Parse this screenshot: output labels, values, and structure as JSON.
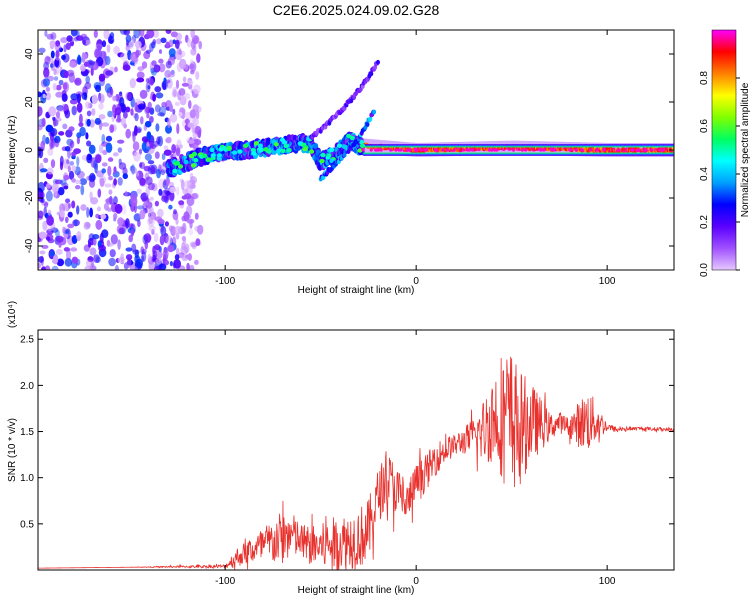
{
  "title": "C2E6.2025.024.09.02.G28",
  "colors": {
    "snr_line": "#e8302c",
    "frame": "#000000",
    "colorbar": [
      "#e6c8ff",
      "#a050ff",
      "#5a00ff",
      "#0000ff",
      "#00a0ff",
      "#00ffff",
      "#00ff60",
      "#80ff00",
      "#ffff00",
      "#ff8000",
      "#ff0000",
      "#ff00ff"
    ]
  },
  "chart_data": [
    {
      "type": "heatmap",
      "xlabel": "Height of straight line (km)",
      "ylabel": "Frequency (Hz)",
      "xlim": [
        -198,
        135
      ],
      "ylim": [
        -50,
        50
      ],
      "xticks": [
        -100,
        0,
        100
      ],
      "xtick_labels": [
        "-100",
        "0",
        "100"
      ],
      "yticks": [
        -40,
        -20,
        0,
        20,
        40
      ],
      "ytick_labels": [
        "-40",
        "-20",
        "0",
        "20",
        "40"
      ],
      "colorbar": {
        "label": "Normalized spectral amplitude",
        "range": [
          0,
          1
        ],
        "ticks": [
          0.0,
          0.2,
          0.4,
          0.6,
          0.8
        ],
        "tick_labels": [
          "0.0",
          "0.2",
          "0.4",
          "0.6",
          "0.8"
        ]
      },
      "features": {
        "noise_region_x": [
          -198,
          -125
        ],
        "main_band": [
          [
            -130,
            -8
          ],
          [
            -110,
            -2
          ],
          [
            -90,
            0
          ],
          [
            -70,
            2
          ],
          [
            -60,
            3
          ],
          [
            -55,
            2
          ],
          [
            -50,
            -5
          ],
          [
            -40,
            0
          ],
          [
            -35,
            4
          ],
          [
            -30,
            2
          ],
          [
            0,
            0
          ],
          [
            50,
            1
          ],
          [
            100,
            0
          ],
          [
            135,
            0
          ]
        ],
        "upper_branch": [
          [
            -55,
            5
          ],
          [
            -45,
            12
          ],
          [
            -35,
            20
          ],
          [
            -25,
            30
          ],
          [
            -20,
            37
          ]
        ],
        "lower_branch": [
          [
            -50,
            -12
          ],
          [
            -40,
            -4
          ],
          [
            -30,
            5
          ],
          [
            -22,
            16
          ]
        ],
        "isolated_spot": [
          -123,
          -22
        ]
      }
    },
    {
      "type": "line",
      "xlabel": "Height of straight line (km)",
      "ylabel": "SNR (10 * v/v)",
      "y_multiplier": "(x10⁴)",
      "xlim": [
        -198,
        135
      ],
      "ylim": [
        0,
        2.6
      ],
      "xticks": [
        -100,
        0,
        100
      ],
      "xtick_labels": [
        "-100",
        "0",
        "100"
      ],
      "yticks": [
        0.5,
        1.0,
        1.5,
        2.0,
        2.5
      ],
      "ytick_labels": [
        "0.5",
        "1.0",
        "1.5",
        "2.0",
        "2.5"
      ],
      "series": [
        {
          "x": [
            -198,
            -150,
            -100,
            -95,
            -90,
            -85,
            -80,
            -75,
            -70,
            -65,
            -60,
            -55,
            -50,
            -45,
            -40,
            -35,
            -30,
            -25,
            -20,
            -15,
            -10,
            -5,
            0,
            5,
            10,
            15,
            20,
            25,
            30,
            35,
            40,
            45,
            50,
            55,
            60,
            65,
            70,
            75,
            80,
            85,
            90,
            95,
            100,
            105,
            110,
            120,
            135
          ],
          "y": [
            0.02,
            0.03,
            0.04,
            0.12,
            0.18,
            0.22,
            0.26,
            0.3,
            0.35,
            0.38,
            0.3,
            0.26,
            0.25,
            0.28,
            0.3,
            0.32,
            0.35,
            0.42,
            0.8,
            1.0,
            0.85,
            0.7,
            0.95,
            1.05,
            1.2,
            1.3,
            1.35,
            1.4,
            1.45,
            1.5,
            1.65,
            1.7,
            1.6,
            1.55,
            1.6,
            1.58,
            1.55,
            1.6,
            1.55,
            1.58,
            1.62,
            1.6,
            1.55,
            1.52,
            1.53,
            1.53,
            1.52
          ],
          "noise": [
            0.0,
            0.0,
            0.02,
            0.1,
            0.12,
            0.15,
            0.22,
            0.25,
            0.3,
            0.25,
            0.2,
            0.22,
            0.25,
            0.28,
            0.3,
            0.32,
            0.34,
            0.35,
            0.3,
            0.3,
            0.28,
            0.25,
            0.2,
            0.2,
            0.18,
            0.15,
            0.12,
            0.15,
            0.2,
            0.35,
            0.5,
            0.7,
            0.8,
            0.6,
            0.45,
            0.3,
            0.15,
            0.12,
            0.1,
            0.25,
            0.35,
            0.2,
            0.05,
            0.03,
            0.02,
            0.02,
            0.02
          ]
        }
      ]
    }
  ]
}
